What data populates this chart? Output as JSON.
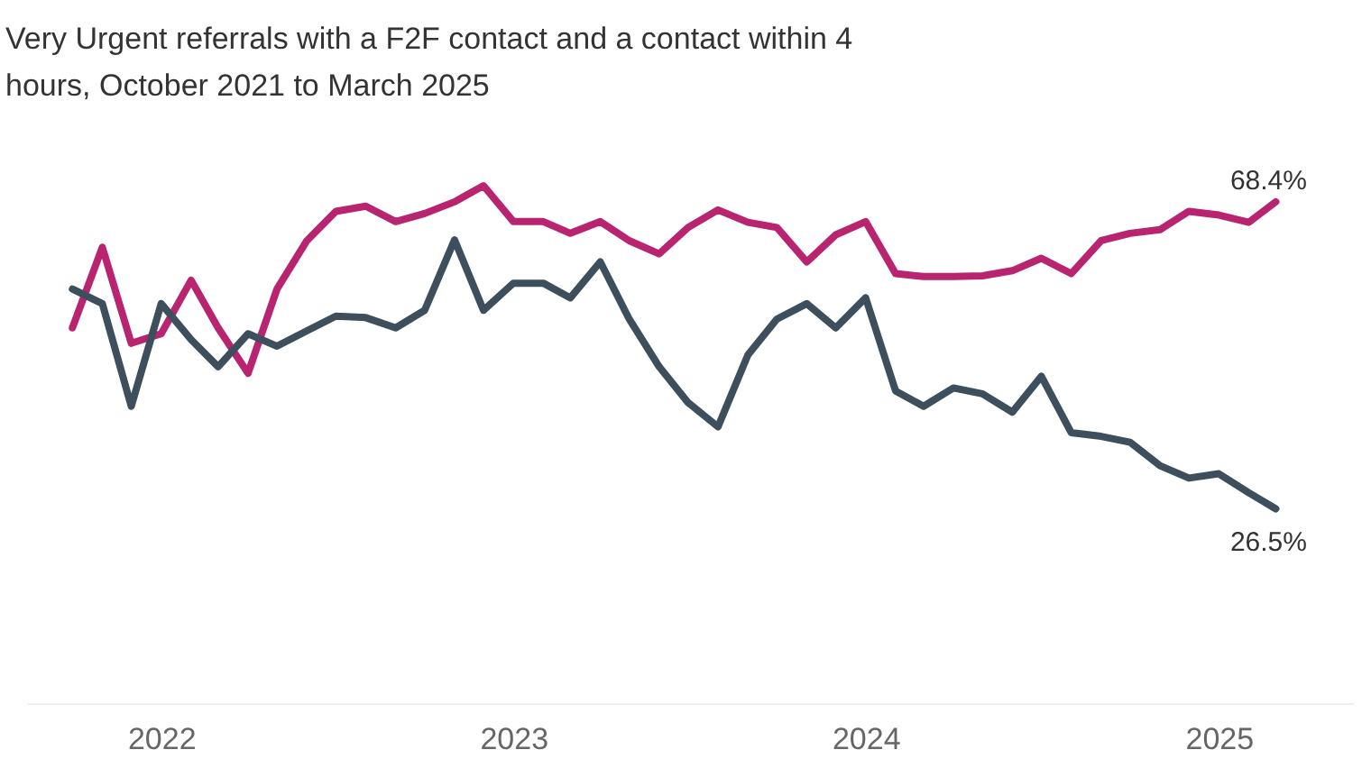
{
  "chart_data": {
    "type": "line",
    "title": "Very Urgent referrals with a F2F contact and a contact within 4 hours, October 2021 to March 2025",
    "x": [
      "2021-10",
      "2021-11",
      "2021-12",
      "2022-01",
      "2022-02",
      "2022-03",
      "2022-04",
      "2022-05",
      "2022-06",
      "2022-07",
      "2022-08",
      "2022-09",
      "2022-10",
      "2022-11",
      "2022-12",
      "2023-01",
      "2023-02",
      "2023-03",
      "2023-04",
      "2023-05",
      "2023-06",
      "2023-07",
      "2023-08",
      "2023-09",
      "2023-10",
      "2023-11",
      "2023-12",
      "2024-01",
      "2024-02",
      "2024-03",
      "2024-04",
      "2024-05",
      "2024-06",
      "2024-07",
      "2024-08",
      "2024-09",
      "2024-10",
      "2024-11",
      "2024-12",
      "2025-01",
      "2025-02",
      "2025-03"
    ],
    "series": [
      {
        "color": "#b8246f",
        "values": [
          51.2,
          62.2,
          49.1,
          50.4,
          57.7,
          51.2,
          45.0,
          56.5,
          63.1,
          67.1,
          67.8,
          65.7,
          66.8,
          68.4,
          70.6,
          65.7,
          65.7,
          64.1,
          65.7,
          63.1,
          61.3,
          64.9,
          67.3,
          65.6,
          64.9,
          60.2,
          63.9,
          65.7,
          58.6,
          58.2,
          58.2,
          58.3,
          59.0,
          60.7,
          58.6,
          63.1,
          64.1,
          64.6,
          67.1,
          66.6,
          65.6,
          68.4
        ],
        "value_labels": [
          null,
          null,
          null,
          null,
          null,
          null,
          null,
          null,
          null,
          null,
          null,
          null,
          null,
          null,
          null,
          null,
          null,
          null,
          null,
          null,
          null,
          null,
          null,
          null,
          null,
          null,
          null,
          null,
          null,
          null,
          null,
          null,
          null,
          null,
          null,
          null,
          null,
          null,
          null,
          null,
          null,
          "68.4%"
        ]
      },
      {
        "color": "#3d4f5c",
        "values": [
          56.5,
          54.5,
          40.5,
          54.5,
          49.6,
          45.9,
          50.4,
          48.7,
          50.8,
          52.8,
          52.6,
          51.2,
          53.6,
          63.2,
          53.6,
          57.3,
          57.3,
          55.3,
          60.2,
          52.4,
          45.9,
          41.0,
          37.7,
          47.5,
          52.4,
          54.5,
          51.2,
          55.3,
          42.6,
          40.5,
          43.0,
          42.2,
          39.7,
          44.6,
          36.9,
          36.4,
          35.6,
          32.4,
          30.7,
          31.3,
          28.7,
          26.5
        ],
        "value_labels": [
          null,
          null,
          null,
          null,
          null,
          null,
          null,
          null,
          null,
          null,
          null,
          null,
          null,
          null,
          null,
          null,
          null,
          null,
          null,
          null,
          null,
          null,
          null,
          null,
          null,
          null,
          null,
          null,
          null,
          null,
          null,
          null,
          null,
          null,
          null,
          null,
          null,
          null,
          null,
          null,
          null,
          "26.5%"
        ]
      }
    ],
    "xlim": [
      "2021-08-15",
      "2025-05-20"
    ],
    "xticks": [
      "2022",
      "2023",
      "2024",
      "2025"
    ],
    "tick_labels": "x",
    "grid": false,
    "line_style": "solid",
    "marker": "none"
  }
}
